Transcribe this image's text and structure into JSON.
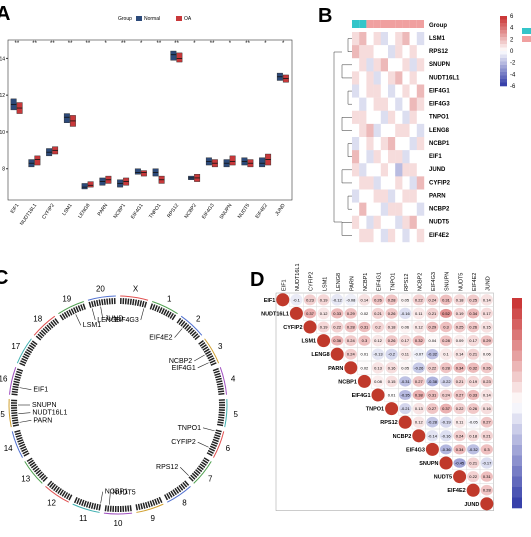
{
  "chart_data": [
    {
      "type": "box",
      "panel": "A",
      "legend_title": "Group",
      "categories": [
        "EIF1",
        "NUDT16L1",
        "CYFIP2",
        "LSM1",
        "LENG8",
        "PARN",
        "NCBP1",
        "EIF4G1",
        "TNPO1",
        "RPS12",
        "NCBP2",
        "EIF4G3",
        "SNUPN",
        "NUDT5",
        "EIF4E2",
        "JUND"
      ],
      "significance": [
        "**",
        "**",
        "**",
        "**",
        "**",
        "*",
        "**",
        "*",
        "**",
        "**",
        "*",
        "**",
        "*",
        "**",
        "*",
        "*"
      ],
      "series": [
        {
          "name": "Normal",
          "color": "#2c4a7a",
          "q1": [
            11.2,
            8.1,
            8.7,
            10.5,
            6.9,
            7.1,
            7.0,
            7.7,
            7.6,
            13.9,
            7.4,
            8.2,
            8.1,
            8.2,
            8.1,
            12.8
          ],
          "median": [
            11.5,
            8.3,
            8.9,
            10.8,
            7.0,
            7.3,
            7.2,
            7.8,
            7.8,
            14.2,
            7.5,
            8.4,
            8.3,
            8.4,
            8.3,
            13.0
          ],
          "q3": [
            11.8,
            8.5,
            9.1,
            11.0,
            7.2,
            7.5,
            7.4,
            8.0,
            8.0,
            14.4,
            7.6,
            8.6,
            8.5,
            8.6,
            8.6,
            13.2
          ]
        },
        {
          "name": "OA",
          "color": "#c8383a",
          "q1": [
            11.0,
            8.2,
            8.8,
            10.3,
            7.0,
            7.2,
            7.1,
            7.6,
            7.2,
            13.8,
            7.3,
            8.1,
            8.2,
            8.1,
            8.2,
            12.7
          ],
          "median": [
            11.3,
            8.5,
            9.0,
            10.6,
            7.1,
            7.4,
            7.3,
            7.8,
            7.4,
            14.0,
            7.5,
            8.3,
            8.4,
            8.3,
            8.5,
            12.9
          ],
          "q3": [
            11.6,
            8.7,
            9.2,
            10.9,
            7.3,
            7.6,
            7.5,
            7.9,
            7.6,
            14.3,
            7.7,
            8.5,
            8.7,
            8.5,
            8.8,
            13.1
          ]
        }
      ],
      "ylim": [
        6.3,
        15
      ],
      "yticks": [
        8,
        10,
        12,
        14
      ]
    },
    {
      "type": "heatmap",
      "panel": "B",
      "legend_title": "Group",
      "rows": [
        "LSM1",
        "RPS12",
        "SNUPN",
        "NUDT16L1",
        "EIF4G1",
        "EIF4G3",
        "TNPO1",
        "LENG8",
        "NCBP1",
        "EIF1",
        "JUND",
        "CYFIP2",
        "PARN",
        "NCBP2",
        "NUDT5",
        "EIF4E2"
      ],
      "group_colors": [
        "#33c5c9",
        "#f0a0a0"
      ],
      "values": [
        [
          1,
          2,
          0,
          1,
          -1,
          0,
          1,
          2,
          0,
          -1
        ],
        [
          2,
          1,
          1,
          0,
          0,
          -1,
          1,
          0,
          1,
          0
        ],
        [
          0,
          1,
          -1,
          1,
          2,
          0,
          0,
          1,
          -1,
          1
        ],
        [
          1,
          0,
          1,
          -1,
          0,
          1,
          2,
          0,
          1,
          0
        ],
        [
          -1,
          0,
          1,
          1,
          0,
          -1,
          0,
          1,
          0,
          2
        ],
        [
          0,
          -1,
          0,
          1,
          1,
          0,
          -1,
          0,
          2,
          1
        ],
        [
          1,
          1,
          0,
          0,
          -1,
          1,
          0,
          -1,
          1,
          0
        ],
        [
          0,
          1,
          2,
          -1,
          0,
          0,
          1,
          1,
          0,
          -1
        ],
        [
          -1,
          0,
          1,
          0,
          1,
          2,
          0,
          0,
          -1,
          1
        ],
        [
          2,
          0,
          -1,
          1,
          0,
          1,
          1,
          -1,
          0,
          0
        ],
        [
          1,
          -1,
          0,
          0,
          1,
          0,
          -2,
          1,
          1,
          0
        ],
        [
          0,
          1,
          1,
          -1,
          0,
          0,
          1,
          0,
          -1,
          2
        ],
        [
          -1,
          0,
          0,
          1,
          1,
          -1,
          0,
          1,
          1,
          0
        ],
        [
          0,
          2,
          0,
          0,
          -1,
          1,
          1,
          0,
          0,
          -1
        ],
        [
          1,
          0,
          -1,
          1,
          0,
          0,
          -1,
          1,
          2,
          0
        ],
        [
          0,
          1,
          1,
          0,
          -1,
          1,
          0,
          -1,
          0,
          1
        ]
      ],
      "zlim": [
        -6,
        6
      ],
      "zticks": [
        6,
        4,
        2,
        0,
        -2,
        -4,
        -6
      ]
    },
    {
      "type": "circos",
      "panel": "C",
      "genes": [
        "LSM1",
        "LENG8",
        "JUND",
        "EIF1",
        "PARN",
        "NUDT16L1",
        "SNUPN",
        "EIF4G3",
        "EIF4E2",
        "NCBP2",
        "EIF4G1",
        "TNPO1",
        "CYFIP2",
        "RPS12",
        "NUDT5",
        "NCBP1"
      ],
      "chromosomes": [
        "X",
        "1",
        "2",
        "3",
        "4",
        "5",
        "6",
        "7",
        "8",
        "9",
        "10",
        "11",
        "12",
        "13",
        "14",
        "15",
        "16",
        "17",
        "18",
        "19",
        "20"
      ]
    },
    {
      "type": "correlation",
      "panel": "D",
      "labels": [
        "EIF1",
        "NUDT16L1",
        "CYFIP2",
        "LSM1",
        "LENG8",
        "PARN",
        "NCBP1",
        "EIF4G1",
        "TNPO1",
        "RPS12",
        "NCBP2",
        "EIF4G3",
        "SNUPN",
        "NUDT5",
        "EIF4E2",
        "JUND"
      ],
      "values": [
        [
          -0.1,
          0.23,
          0.19,
          -0.12,
          -0.08,
          0.14,
          0.26,
          0.28,
          0.05,
          0.22,
          0.24,
          0.31,
          0.18,
          0.25,
          0.14
        ],
        [
          0.37,
          0.12,
          0.33,
          0.29,
          0.02,
          0.21,
          0.26,
          -0.16,
          0.11,
          0.21,
          0.52,
          0.19,
          0.34,
          0.17
        ],
        [
          0.19,
          0.22,
          0.28,
          0.31,
          0.2,
          0.18,
          0.06,
          0.12,
          0.29,
          0.3,
          0.25,
          0.26,
          0.15
        ],
        [
          0.36,
          0.24,
          0.3,
          0.12,
          0.26,
          0.17,
          0.32,
          0.04,
          0.28,
          0.09,
          0.17,
          0.29
        ],
        [
          0.24,
          0.01,
          -0.13,
          -0.2,
          0.11,
          -0.07,
          -0.32,
          0.1,
          0.14,
          0.21,
          0.06
        ],
        [
          0.02,
          0.13,
          0.16,
          0.05,
          -0.26,
          0.22,
          0.28,
          0.34,
          0.32,
          0.26
        ],
        [
          0.08,
          0.15,
          -0.31,
          0.27,
          -0.38,
          -0.22,
          0.21,
          0.19,
          0.23
        ],
        [
          0.01,
          -0.35,
          0.38,
          0.31,
          0.24,
          0.27,
          0.33,
          0.14
        ],
        [
          -0.21,
          0.13,
          0.27,
          0.37,
          0.22,
          0.26,
          0.16
        ],
        [
          0.12,
          -0.28,
          -0.19,
          0.11,
          -0.05,
          0.27
        ],
        [
          -0.14,
          -0.16,
          0.24,
          0.18,
          0.21
        ],
        [
          -0.36,
          0.34,
          -0.32,
          0.3
        ],
        [
          -0.45,
          0.21,
          -0.17
        ],
        [
          0.22,
          0.31
        ],
        [
          0.28
        ]
      ]
    }
  ]
}
